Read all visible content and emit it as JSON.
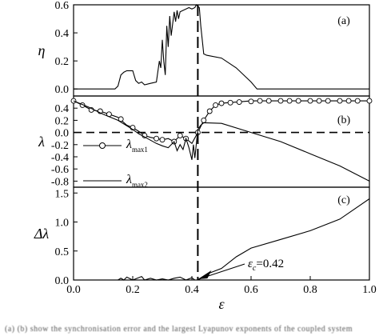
{
  "chart_data": [
    {
      "type": "line",
      "panel_label": "(a)",
      "ylabel": "η",
      "xlim": [
        0.0,
        1.0
      ],
      "ylim": [
        -0.05,
        0.6
      ],
      "yticks": [
        "0.0",
        "0.2",
        "0.4",
        "0.6"
      ],
      "ytick_values": [
        0.0,
        0.2,
        0.4,
        0.6
      ],
      "series": [
        {
          "x": [
            0.0,
            0.14,
            0.15,
            0.16,
            0.17,
            0.18,
            0.2,
            0.21,
            0.22,
            0.23,
            0.24,
            0.26,
            0.28,
            0.29,
            0.295,
            0.3,
            0.305,
            0.31,
            0.315,
            0.32,
            0.325,
            0.33,
            0.34,
            0.345,
            0.35,
            0.355,
            0.36,
            0.37,
            0.38,
            0.39,
            0.4,
            0.41,
            0.415,
            0.42,
            0.425,
            0.43,
            0.44,
            0.45,
            0.5,
            0.55,
            0.6,
            0.62,
            1.0
          ],
          "y": [
            0.0,
            0.0,
            0.02,
            0.1,
            0.12,
            0.13,
            0.13,
            0.06,
            0.04,
            0.05,
            0.03,
            0.04,
            0.05,
            0.2,
            0.15,
            0.35,
            0.2,
            0.1,
            0.45,
            0.3,
            0.52,
            0.38,
            0.55,
            0.48,
            0.56,
            0.5,
            0.55,
            0.56,
            0.57,
            0.58,
            0.57,
            0.58,
            0.6,
            0.59,
            0.58,
            0.45,
            0.25,
            0.24,
            0.22,
            0.15,
            0.05,
            0.0,
            0.0
          ]
        }
      ]
    },
    {
      "type": "line",
      "panel_label": "(b)",
      "ylabel": "λ",
      "xlim": [
        0.0,
        1.0
      ],
      "ylim": [
        -0.9,
        0.6
      ],
      "yticks": [
        "0.4",
        "0.2",
        "0.0",
        "-0.2",
        "-0.4",
        "-0.6",
        "-0.8"
      ],
      "ytick_values": [
        0.4,
        0.2,
        0.0,
        -0.2,
        -0.4,
        -0.6,
        -0.8
      ],
      "hline": 0.0,
      "series": [
        {
          "name": "λmax1",
          "legend_main": "λ",
          "legend_sub": "max1",
          "marker": "circle",
          "x": [
            0.0,
            0.03,
            0.06,
            0.09,
            0.12,
            0.15,
            0.18,
            0.2,
            0.22,
            0.24,
            0.26,
            0.28,
            0.3,
            0.32,
            0.34,
            0.36,
            0.38,
            0.4,
            0.42,
            0.44,
            0.46,
            0.48,
            0.5,
            0.55,
            0.6,
            0.65,
            0.7,
            0.75,
            0.8,
            0.85,
            0.9,
            0.95,
            1.0
          ],
          "y": [
            0.52,
            0.45,
            0.37,
            0.35,
            0.3,
            0.25,
            0.12,
            0.08,
            0.02,
            -0.05,
            -0.08,
            -0.1,
            -0.12,
            -0.1,
            -0.15,
            -0.05,
            -0.1,
            -0.18,
            0.0,
            0.2,
            0.35,
            0.45,
            0.48,
            0.5,
            0.52,
            0.52,
            0.52,
            0.52,
            0.52,
            0.52,
            0.52,
            0.52,
            0.52
          ],
          "marker_x": [
            0.0,
            0.03,
            0.06,
            0.09,
            0.12,
            0.16,
            0.2,
            0.24,
            0.28,
            0.3,
            0.34,
            0.36,
            0.38,
            0.42,
            0.44,
            0.46,
            0.48,
            0.5,
            0.53,
            0.56,
            0.6,
            0.63,
            0.66,
            0.7,
            0.73,
            0.76,
            0.8,
            0.83,
            0.86,
            0.9,
            0.93,
            0.96,
            1.0
          ],
          "marker_y": [
            0.52,
            0.45,
            0.37,
            0.35,
            0.3,
            0.22,
            0.08,
            -0.05,
            -0.1,
            -0.12,
            -0.15,
            -0.05,
            -0.1,
            0.0,
            0.2,
            0.35,
            0.45,
            0.48,
            0.49,
            0.5,
            0.51,
            0.52,
            0.52,
            0.52,
            0.52,
            0.52,
            0.52,
            0.52,
            0.52,
            0.52,
            0.52,
            0.52,
            0.52
          ]
        },
        {
          "name": "λmax2",
          "legend_main": "λ",
          "legend_sub": "max2",
          "x": [
            0.0,
            0.05,
            0.1,
            0.15,
            0.2,
            0.22,
            0.25,
            0.28,
            0.3,
            0.32,
            0.34,
            0.35,
            0.36,
            0.37,
            0.38,
            0.39,
            0.4,
            0.405,
            0.41,
            0.42,
            0.43,
            0.44,
            0.5,
            0.6,
            0.7,
            0.8,
            0.9,
            1.0
          ],
          "y": [
            0.52,
            0.42,
            0.3,
            0.2,
            0.05,
            -0.02,
            -0.1,
            -0.18,
            -0.22,
            -0.25,
            -0.15,
            -0.3,
            -0.2,
            -0.28,
            -0.1,
            -0.25,
            -0.45,
            -0.2,
            -0.42,
            0.05,
            0.12,
            0.16,
            0.15,
            0.0,
            -0.15,
            -0.35,
            -0.55,
            -0.8
          ]
        }
      ]
    },
    {
      "type": "line",
      "panel_label": "(c)",
      "ylabel": "Δλ",
      "xlabel": "ε",
      "xlim": [
        0.0,
        1.0
      ],
      "ylim": [
        0.0,
        1.6
      ],
      "xticks": [
        "0.0",
        "0.2",
        "0.4",
        "0.6",
        "0.8",
        "1.0"
      ],
      "xtick_values": [
        0.0,
        0.2,
        0.4,
        0.6,
        0.8,
        1.0
      ],
      "yticks": [
        "0.0",
        "0.5",
        "1.0",
        "1.5"
      ],
      "ytick_values": [
        0.0,
        0.5,
        1.0,
        1.5
      ],
      "series": [
        {
          "x": [
            0.0,
            0.1,
            0.15,
            0.16,
            0.17,
            0.18,
            0.2,
            0.22,
            0.23,
            0.24,
            0.26,
            0.28,
            0.3,
            0.32,
            0.34,
            0.36,
            0.38,
            0.4,
            0.41,
            0.42,
            0.44,
            0.46,
            0.5,
            0.55,
            0.6,
            0.7,
            0.8,
            0.9,
            1.0
          ],
          "y": [
            0.0,
            0.0,
            0.0,
            0.03,
            0.0,
            0.05,
            0.0,
            0.04,
            0.06,
            0.0,
            0.03,
            0.0,
            0.02,
            0.0,
            0.03,
            0.05,
            0.0,
            0.04,
            0.0,
            0.0,
            0.05,
            0.12,
            0.2,
            0.4,
            0.55,
            0.7,
            0.85,
            1.05,
            1.4
          ]
        }
      ],
      "annotation": {
        "text": "εc=0.42",
        "main": "ε",
        "sub": "c",
        "rest": "=0.42",
        "point": [
          0.42,
          0.0
        ]
      }
    }
  ],
  "vline_x": 0.42,
  "caption": "(a) (b) show the synchronisation error and the largest Lyapunov exponents of the coupled system"
}
